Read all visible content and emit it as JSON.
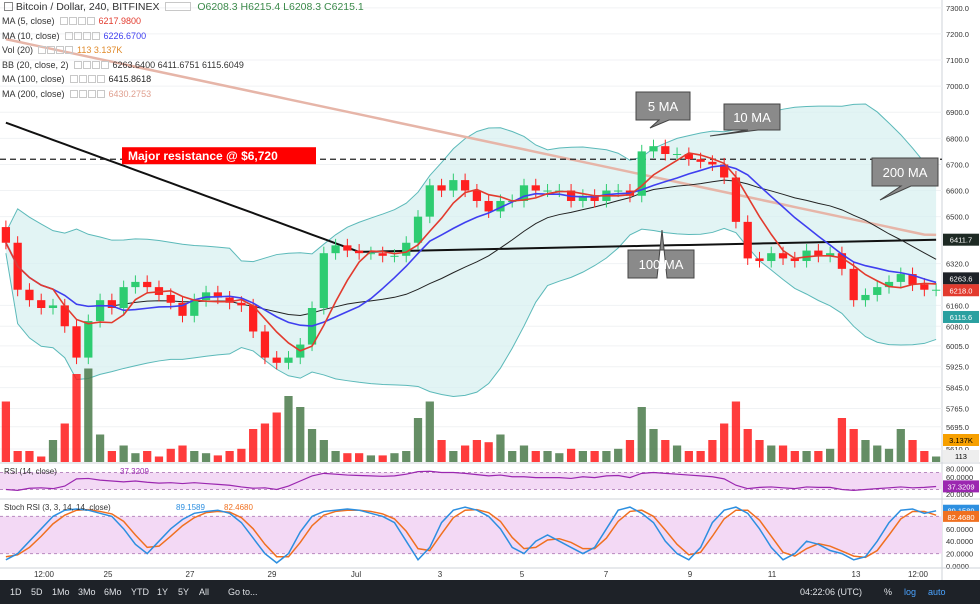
{
  "header": {
    "title": "Bitcoin / Dollar, 240, BITFINEX",
    "ohlc": "O6208.3  H6215.4  L6208.3  C6215.1"
  },
  "indicators": [
    {
      "label": "MA (5, close)",
      "value": "6217.9800",
      "color": "#e23b2e"
    },
    {
      "label": "MA (10, close)",
      "value": "6226.6700",
      "color": "#3f3ff0"
    },
    {
      "label": "Vol (20)",
      "value": "113  3.137K",
      "color": "#e08a2a"
    },
    {
      "label": "BB (20, close, 2)",
      "value": "6263.6400  6411.6751  6115.6049",
      "color": "#333333"
    },
    {
      "label": "MA (100, close)",
      "value": "6415.8618",
      "color": "#222222"
    },
    {
      "label": "MA (200, close)",
      "value": "6430.2753",
      "color": "#e0a090"
    }
  ],
  "price_axis": [
    "7300.0",
    "7200.0",
    "7100.0",
    "7000.0",
    "6900.0",
    "6800.0",
    "6700.0",
    "6600.0",
    "6500.0",
    "6320.0",
    "6160.0",
    "6080.0",
    "6005.0",
    "5925.0",
    "5845.0",
    "5765.0",
    "5695.0",
    "5610.0"
  ],
  "price_tags": [
    {
      "text": "6411.7",
      "bg": "#1e2a24",
      "fg": "#ffffff",
      "price": 6411.7
    },
    {
      "text": "6263.6",
      "bg": "#1e2228",
      "fg": "#ffffff",
      "price": 6263.6
    },
    {
      "text": "6218.0",
      "bg": "#e23b2e",
      "fg": "#ffffff",
      "price": 6218.0
    },
    {
      "text": "6115.6",
      "bg": "#2aa0a0",
      "fg": "#ffffff",
      "price": 6115.6
    },
    {
      "text": "3.137K",
      "bg": "#f7a000",
      "fg": "#000000",
      "price": 0
    },
    {
      "text": "113",
      "bg": "#eeeeee",
      "fg": "#000000",
      "price": 0
    }
  ],
  "annotations": {
    "resistance": "Major resistance @ $6,720",
    "ma5": "5 MA",
    "ma10": "10 MA",
    "ma100": "100 MA",
    "ma200": "200 MA"
  },
  "rsi": {
    "label": "RSI (14, close)",
    "value": "37.3209",
    "axis": [
      "80.0000",
      "60.0000",
      "37.3209",
      "20.0000"
    ]
  },
  "stoch": {
    "label": "Stoch RSI (3, 3, 14, 14, close)",
    "k": "89.1589",
    "d": "82.4680",
    "axis": [
      "89.1589",
      "82.4680",
      "60.0000",
      "40.0000",
      "20.0000",
      "0.0000"
    ]
  },
  "time_axis": [
    "12:00",
    "25",
    "27",
    "29",
    "Jul",
    "3",
    "5",
    "7",
    "9",
    "11",
    "13",
    "12:00"
  ],
  "bottom_bar": {
    "ranges": [
      "1D",
      "5D",
      "1Mo",
      "3Mo",
      "6Mo",
      "YTD",
      "1Y",
      "5Y",
      "All"
    ],
    "goto": "Go to...",
    "clock": "04:22:06 (UTC)",
    "pct": "%",
    "log": "log",
    "auto": "auto"
  },
  "chart_data": {
    "type": "candlestick",
    "title": "Bitcoin / Dollar, 240, BITFINEX",
    "ylim": [
      5560,
      7330
    ],
    "resistance_level": 6720,
    "closes": [
      6400,
      6220,
      6180,
      6150,
      6160,
      6080,
      5960,
      6100,
      6180,
      6150,
      6230,
      6250,
      6230,
      6200,
      6170,
      6120,
      6180,
      6210,
      6190,
      6170,
      6160,
      6060,
      5960,
      5940,
      5960,
      6010,
      6150,
      6360,
      6390,
      6370,
      6360,
      6360,
      6350,
      6350,
      6400,
      6500,
      6620,
      6600,
      6640,
      6600,
      6560,
      6520,
      6560,
      6560,
      6620,
      6600,
      6600,
      6600,
      6560,
      6580,
      6560,
      6600,
      6600,
      6580,
      6750,
      6770,
      6740,
      6740,
      6720,
      6710,
      6700,
      6650,
      6480,
      6340,
      6330,
      6360,
      6340,
      6330,
      6370,
      6350,
      6360,
      6300,
      6180,
      6200,
      6230,
      6250,
      6280,
      6240,
      6220,
      6220
    ],
    "volumes": [
      0.55,
      0.1,
      0.1,
      0.05,
      0.2,
      0.35,
      0.8,
      0.85,
      0.25,
      0.1,
      0.15,
      0.08,
      0.1,
      0.05,
      0.12,
      0.15,
      0.1,
      0.08,
      0.06,
      0.1,
      0.12,
      0.3,
      0.35,
      0.45,
      0.6,
      0.5,
      0.3,
      0.2,
      0.1,
      0.08,
      0.08,
      0.06,
      0.06,
      0.08,
      0.1,
      0.4,
      0.55,
      0.2,
      0.1,
      0.15,
      0.2,
      0.18,
      0.25,
      0.1,
      0.15,
      0.1,
      0.1,
      0.08,
      0.12,
      0.1,
      0.1,
      0.1,
      0.12,
      0.2,
      0.5,
      0.3,
      0.2,
      0.15,
      0.1,
      0.1,
      0.2,
      0.35,
      0.55,
      0.3,
      0.2,
      0.15,
      0.15,
      0.1,
      0.1,
      0.1,
      0.12,
      0.4,
      0.3,
      0.2,
      0.15,
      0.12,
      0.3,
      0.2,
      0.1,
      0.05
    ],
    "rsi_values": [
      30,
      28,
      33,
      34,
      32,
      38,
      55,
      56,
      52,
      50,
      48,
      50,
      47,
      45,
      46,
      44,
      46,
      44,
      42,
      40,
      36,
      33,
      34,
      30,
      38,
      50,
      62,
      68,
      66,
      64,
      63,
      62,
      61,
      62,
      66,
      72,
      73,
      70,
      70,
      68,
      65,
      62,
      64,
      60,
      60,
      58,
      58,
      58,
      56,
      60,
      58,
      62,
      63,
      58,
      68,
      70,
      68,
      66,
      64,
      62,
      60,
      55,
      40,
      32,
      35,
      36,
      34,
      32,
      36,
      35,
      35,
      30,
      28,
      30,
      32,
      34,
      36,
      34,
      35,
      37
    ],
    "stoch_k": [
      10,
      20,
      40,
      60,
      80,
      90,
      92,
      90,
      85,
      80,
      60,
      35,
      20,
      40,
      60,
      75,
      85,
      88,
      90,
      85,
      70,
      45,
      20,
      5,
      20,
      55,
      80,
      88,
      90,
      92,
      90,
      85,
      80,
      70,
      40,
      10,
      30,
      70,
      90,
      95,
      90,
      80,
      60,
      30,
      20,
      40,
      50,
      40,
      30,
      20,
      30,
      60,
      90,
      95,
      85,
      70,
      40,
      20,
      10,
      30,
      70,
      90,
      95,
      85,
      60,
      30,
      10,
      20,
      40,
      35,
      25,
      20,
      10,
      15,
      40,
      70,
      90,
      92,
      85,
      89
    ],
    "stoch_d": [
      15,
      18,
      30,
      48,
      68,
      82,
      90,
      91,
      88,
      84,
      72,
      50,
      30,
      32,
      48,
      65,
      78,
      86,
      88,
      87,
      78,
      60,
      35,
      15,
      15,
      38,
      65,
      82,
      88,
      90,
      90,
      88,
      84,
      76,
      56,
      28,
      25,
      52,
      78,
      90,
      91,
      86,
      72,
      46,
      28,
      30,
      42,
      44,
      38,
      28,
      28,
      45,
      72,
      88,
      90,
      80,
      58,
      35,
      18,
      22,
      48,
      76,
      90,
      90,
      74,
      48,
      22,
      16,
      28,
      36,
      32,
      24,
      16,
      14,
      25,
      50,
      76,
      88,
      88,
      82
    ]
  }
}
